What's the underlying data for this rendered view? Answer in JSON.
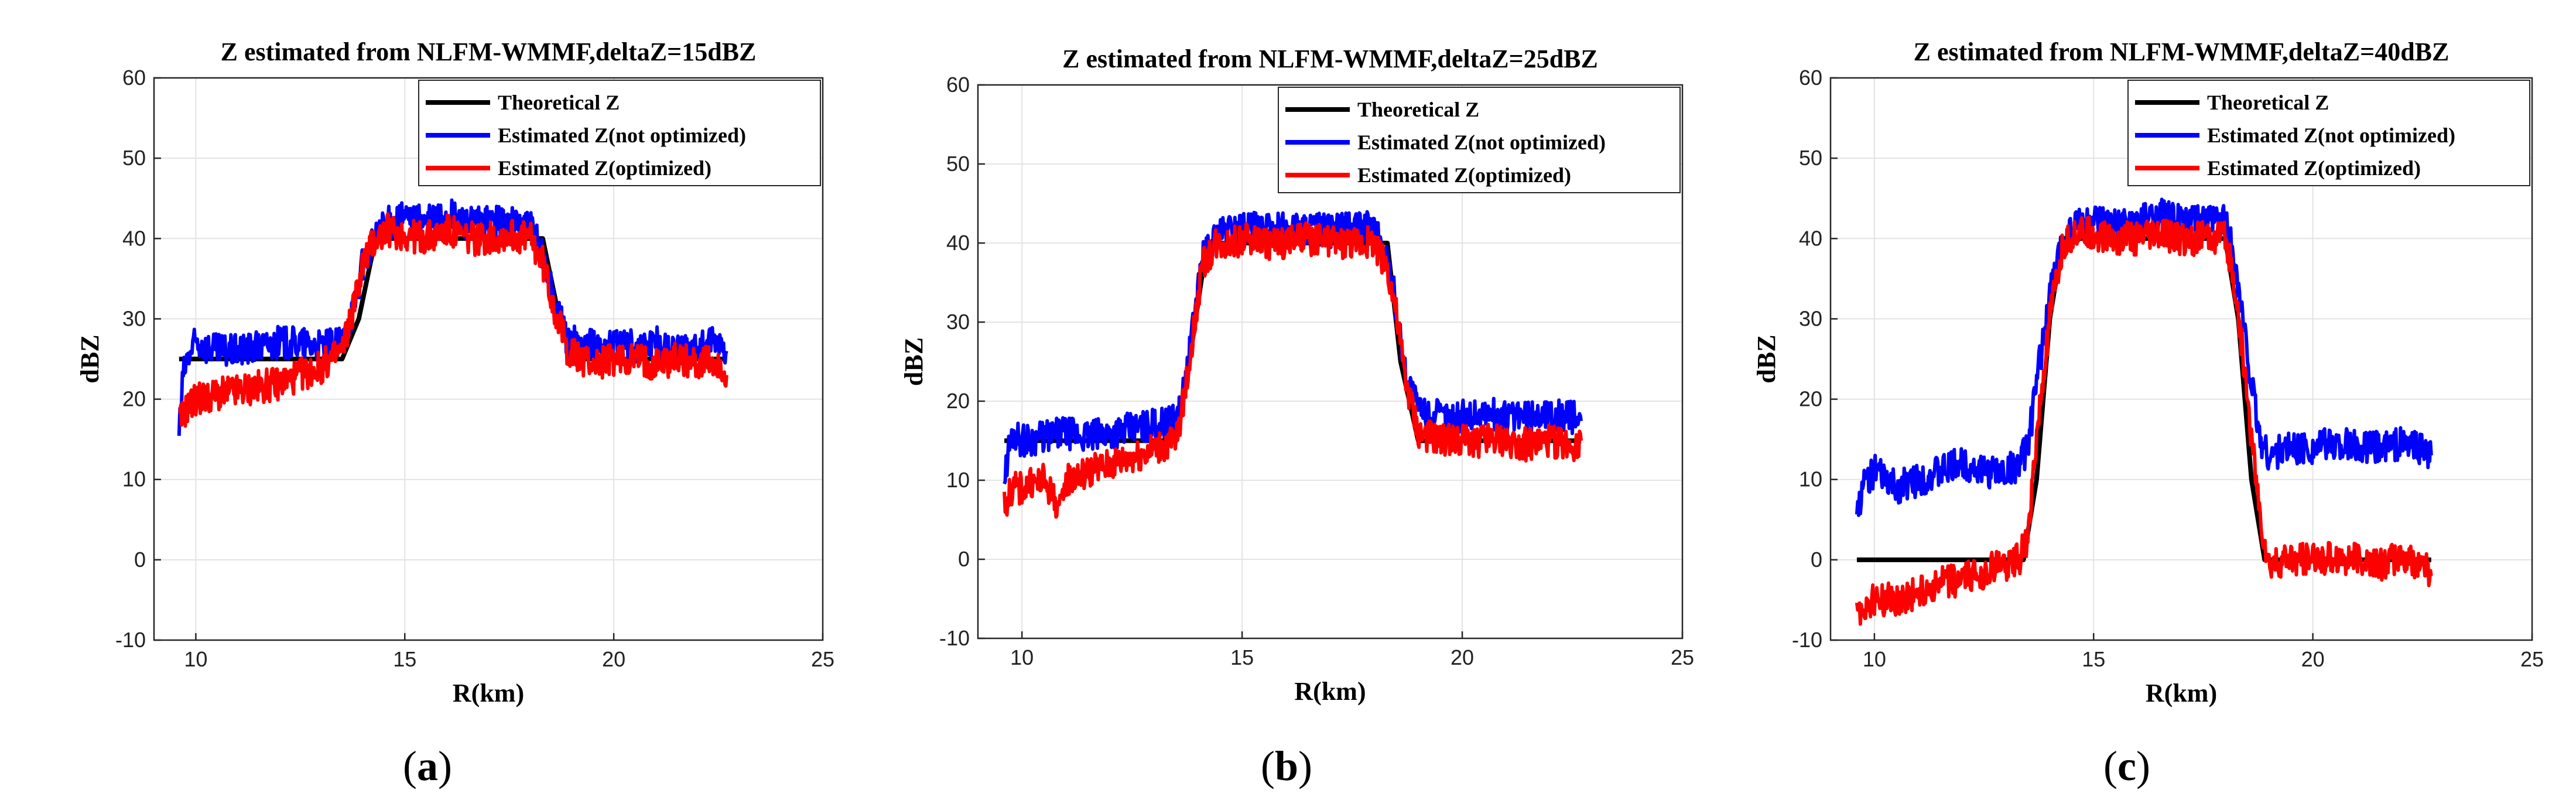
{
  "chart_data": [
    {
      "type": "line",
      "caption": "a",
      "title": "Z estimated from NLFM-WMMF,deltaZ=15dBZ",
      "xlabel": "R(km)",
      "ylabel": "dBZ",
      "xlim": [
        9,
        25
      ],
      "ylim": [
        -10,
        60
      ],
      "xticks": [
        10,
        15,
        20,
        25
      ],
      "yticks": [
        -10,
        0,
        10,
        20,
        30,
        40,
        50,
        60
      ],
      "grid": true,
      "legend_position": "top-right",
      "series": [
        {
          "name": "Theoretical Z",
          "color": "#000000",
          "x": [
            9.6,
            13.5,
            13.9,
            14.3,
            18.3,
            18.7,
            19.1,
            22.7
          ],
          "y": [
            25,
            25,
            30,
            40,
            40,
            30,
            25,
            25
          ]
        },
        {
          "name": "Estimated Z(not optimized)",
          "color": "#0000ff",
          "x": [
            9.6,
            9.7,
            9.8,
            10.0,
            10.5,
            11.0,
            11.5,
            12.0,
            12.5,
            13.0,
            13.5,
            13.8,
            14.0,
            14.3,
            14.6,
            15.0,
            15.5,
            16.0,
            16.5,
            17.0,
            17.5,
            18.0,
            18.3,
            18.6,
            18.9,
            19.2,
            19.6,
            20.0,
            20.5,
            21.0,
            21.5,
            22.0,
            22.5,
            22.7
          ],
          "y": [
            16,
            23,
            25,
            27,
            26,
            26,
            26.5,
            27,
            27,
            26.5,
            27,
            32,
            37,
            40,
            42,
            42.5,
            42,
            43,
            42,
            42,
            42,
            41.5,
            38,
            32,
            27,
            27,
            26.5,
            27,
            26.5,
            27,
            26,
            26.5,
            27,
            26
          ]
        },
        {
          "name": "Estimated Z(optimized)",
          "color": "#ff0000",
          "x": [
            9.6,
            9.7,
            9.8,
            10.0,
            10.5,
            11.0,
            11.5,
            12.0,
            12.5,
            13.0,
            13.5,
            13.8,
            14.0,
            14.3,
            14.6,
            15.0,
            15.5,
            16.0,
            16.5,
            17.0,
            17.5,
            18.0,
            18.3,
            18.6,
            18.9,
            19.2,
            19.6,
            20.0,
            20.5,
            21.0,
            21.5,
            22.0,
            22.5,
            22.7
          ],
          "y": [
            17,
            18,
            19,
            20,
            20.5,
            21,
            21.5,
            22,
            23,
            24,
            26,
            32,
            37,
            40,
            41,
            40.5,
            40,
            41,
            40,
            40,
            40.5,
            40,
            37,
            31,
            26,
            25,
            24.5,
            25,
            25,
            24.5,
            25,
            24.5,
            24.5,
            23
          ]
        }
      ]
    },
    {
      "type": "line",
      "caption": "b",
      "title": "Z estimated from NLFM-WMMF,deltaZ=25dBZ",
      "xlabel": "R(km)",
      "ylabel": "dBZ",
      "xlim": [
        9,
        25
      ],
      "ylim": [
        -10,
        60
      ],
      "xticks": [
        10,
        15,
        20,
        25
      ],
      "yticks": [
        -10,
        0,
        10,
        20,
        30,
        40,
        50,
        60
      ],
      "grid": true,
      "legend_position": "top-right",
      "series": [
        {
          "name": "Theoretical Z",
          "color": "#000000",
          "x": [
            9.6,
            13.5,
            13.8,
            14.2,
            18.3,
            18.6,
            19.0,
            22.7
          ],
          "y": [
            15,
            15,
            25,
            40,
            40,
            25,
            15,
            15
          ]
        },
        {
          "name": "Estimated Z(not optimized)",
          "color": "#0000ff",
          "x": [
            9.6,
            9.7,
            9.8,
            10.0,
            10.5,
            11.0,
            11.5,
            12.0,
            12.5,
            13.0,
            13.5,
            13.7,
            13.9,
            14.1,
            14.4,
            14.8,
            15.2,
            15.6,
            16.0,
            16.5,
            17.0,
            17.5,
            18.0,
            18.3,
            18.5,
            18.7,
            19.0,
            19.5,
            20.0,
            20.5,
            21.0,
            21.5,
            22.0,
            22.5,
            22.7
          ],
          "y": [
            10,
            14,
            16,
            15,
            15.5,
            16,
            15.5,
            16,
            16.5,
            17,
            17.5,
            22,
            30,
            38,
            41,
            42,
            42,
            41.5,
            42,
            42,
            41.5,
            42,
            42,
            38,
            32,
            24,
            19,
            18,
            18,
            18.5,
            18,
            18,
            18.5,
            18,
            17.5
          ]
        },
        {
          "name": "Estimated Z(optimized)",
          "color": "#ff0000",
          "x": [
            9.6,
            9.7,
            9.8,
            10.0,
            10.5,
            10.9,
            11.0,
            11.5,
            12.0,
            12.5,
            13.0,
            13.5,
            13.7,
            13.9,
            14.1,
            14.4,
            14.8,
            15.2,
            15.6,
            16.0,
            16.5,
            17.0,
            17.5,
            18.0,
            18.3,
            18.5,
            18.7,
            19.0,
            19.5,
            20.0,
            20.5,
            21.0,
            21.5,
            22.0,
            22.5,
            22.7
          ],
          "y": [
            7,
            8,
            9,
            9,
            10,
            6,
            10,
            11,
            12,
            13,
            14,
            15,
            21,
            29,
            37,
            40,
            40,
            40.5,
            40,
            40,
            40.5,
            40,
            40,
            40,
            37,
            31,
            23,
            16,
            15,
            15,
            15,
            15,
            14.5,
            15,
            14.5,
            15
          ]
        }
      ]
    },
    {
      "type": "line",
      "caption": "c",
      "title": "Z estimated from NLFM-WMMF,deltaZ=40dBZ",
      "xlabel": "R(km)",
      "ylabel": "dBZ",
      "xlim": [
        9,
        25
      ],
      "ylim": [
        -10,
        60
      ],
      "xticks": [
        10,
        15,
        20,
        25
      ],
      "yticks": [
        -10,
        0,
        10,
        20,
        30,
        40,
        50,
        60
      ],
      "grid": true,
      "legend_position": "top-right",
      "series": [
        {
          "name": "Theoretical Z",
          "color": "#000000",
          "x": [
            9.6,
            13.4,
            13.7,
            14.0,
            14.3,
            18.0,
            18.3,
            18.6,
            18.9,
            22.7
          ],
          "y": [
            0,
            0,
            10,
            30,
            40,
            40,
            30,
            10,
            0,
            0
          ]
        },
        {
          "name": "Estimated Z(not optimized)",
          "color": "#0000ff",
          "x": [
            9.6,
            9.7,
            9.8,
            10.0,
            10.5,
            11.0,
            11.5,
            12.0,
            12.5,
            13.0,
            13.3,
            13.5,
            13.7,
            14.0,
            14.3,
            14.6,
            15.0,
            15.5,
            16.0,
            16.5,
            17.0,
            17.5,
            18.0,
            18.2,
            18.4,
            18.6,
            18.8,
            19.0,
            19.5,
            20.0,
            20.5,
            21.0,
            21.5,
            22.0,
            22.5,
            22.7
          ],
          "y": [
            6,
            8,
            10,
            11,
            9,
            10,
            11,
            12,
            11,
            11,
            12,
            14,
            22,
            33,
            40,
            42,
            42,
            41.5,
            42,
            43,
            42,
            42,
            42.5,
            38,
            30,
            22,
            15,
            13,
            14,
            14,
            14.5,
            14,
            14,
            14.5,
            14,
            13
          ]
        },
        {
          "name": "Estimated Z(optimized)",
          "color": "#ff0000",
          "x": [
            9.6,
            9.7,
            9.8,
            10.0,
            10.5,
            11.0,
            11.5,
            12.0,
            12.5,
            13.0,
            13.3,
            13.5,
            13.7,
            14.0,
            14.3,
            14.6,
            15.0,
            15.5,
            16.0,
            16.5,
            17.0,
            17.5,
            18.0,
            18.2,
            18.4,
            18.6,
            18.8,
            19.0,
            19.5,
            20.0,
            20.5,
            21.0,
            21.5,
            22.0,
            22.5,
            22.7
          ],
          "y": [
            -7,
            -6,
            -6,
            -5,
            -5,
            -4,
            -3,
            -2.5,
            -1.5,
            -0.5,
            0,
            3,
            15,
            30,
            39,
            41,
            40.5,
            40,
            40,
            40.5,
            40,
            40,
            40,
            35,
            26,
            15,
            5,
            -1,
            0,
            0,
            0.5,
            0,
            -0.5,
            0,
            -0.5,
            -2
          ]
        }
      ]
    }
  ]
}
